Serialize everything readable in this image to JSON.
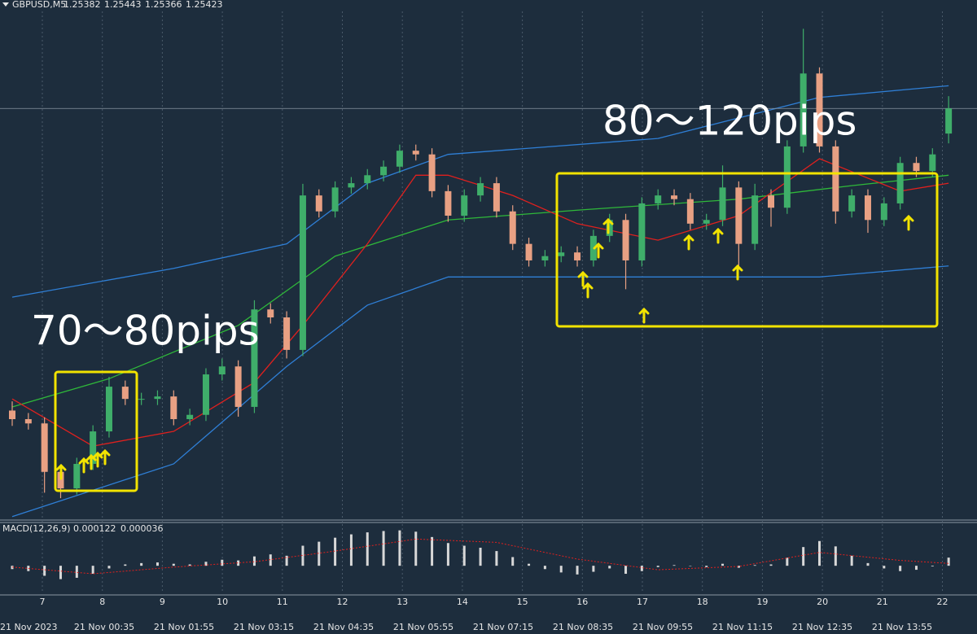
{
  "header": {
    "symbol": "GBPUSD,M5"
  },
  "chart_data": {
    "type": "candlestick",
    "open": [
      1.2493,
      1.24916,
      1.24909,
      1.2483,
      1.24803,
      1.24843,
      1.24896,
      1.24969,
      1.24949,
      1.24949,
      1.24953,
      1.24916,
      1.24923,
      1.24989,
      1.25002,
      1.24936,
      1.25095,
      1.25082,
      1.25029,
      1.25281,
      1.25255,
      1.25294,
      1.25301,
      1.25314,
      1.25328,
      1.25354,
      1.25348,
      1.25288,
      1.25248,
      1.25281,
      1.25301,
      1.25255,
      1.25202,
      1.25175,
      1.25182,
      1.25188,
      1.25175,
      1.25215,
      1.25241,
      1.25175,
      1.25268,
      1.25281,
      1.25275,
      1.25235,
      1.25241,
      1.25294,
      1.25202,
      1.25281,
      1.25261,
      1.25361,
      1.2548,
      1.25361,
      1.25255,
      1.25281,
      1.25241,
      1.25268,
      1.25334,
      1.25321,
      1.25382
    ],
    "high": [
      1.24945,
      1.24926,
      1.24919,
      1.2484,
      1.24853,
      1.24906,
      1.24985,
      1.24979,
      1.24959,
      1.24963,
      1.24963,
      1.24933,
      1.24999,
      1.25015,
      1.25012,
      1.2511,
      1.25105,
      1.25092,
      1.253,
      1.25291,
      1.25304,
      1.25311,
      1.25324,
      1.25338,
      1.25364,
      1.25364,
      1.25358,
      1.25298,
      1.25291,
      1.25311,
      1.25311,
      1.25265,
      1.25212,
      1.25192,
      1.25198,
      1.25198,
      1.25225,
      1.25251,
      1.25251,
      1.25278,
      1.25291,
      1.25291,
      1.25285,
      1.25251,
      1.2533,
      1.25304,
      1.253,
      1.25291,
      1.25371,
      1.25553,
      1.2549,
      1.25371,
      1.25291,
      1.25291,
      1.25278,
      1.25344,
      1.25344,
      1.25358,
      1.25443
    ],
    "low": [
      1.24905,
      1.24899,
      1.24796,
      1.24787,
      1.24793,
      1.24833,
      1.24886,
      1.24939,
      1.24939,
      1.24939,
      1.24906,
      1.24906,
      1.24913,
      1.24979,
      1.2492,
      1.24926,
      1.25072,
      1.25015,
      1.25019,
      1.25245,
      1.25245,
      1.25284,
      1.25291,
      1.25304,
      1.25318,
      1.25338,
      1.25278,
      1.25238,
      1.25238,
      1.25271,
      1.25245,
      1.25192,
      1.25165,
      1.25165,
      1.25172,
      1.25165,
      1.25165,
      1.25205,
      1.25128,
      1.25165,
      1.25258,
      1.25265,
      1.25225,
      1.25225,
      1.25231,
      1.2516,
      1.25192,
      1.2523,
      1.25251,
      1.25351,
      1.25351,
      1.25235,
      1.25245,
      1.2522,
      1.25231,
      1.25258,
      1.25311,
      1.25311,
      1.25366
    ],
    "close": [
      1.24916,
      1.24909,
      1.2483,
      1.24803,
      1.24843,
      1.24896,
      1.24969,
      1.24949,
      1.24949,
      1.24953,
      1.24916,
      1.24923,
      1.24989,
      1.25002,
      1.24936,
      1.25095,
      1.25082,
      1.25029,
      1.25281,
      1.25255,
      1.25294,
      1.25301,
      1.25314,
      1.25328,
      1.25354,
      1.25348,
      1.25288,
      1.25248,
      1.25281,
      1.25301,
      1.25255,
      1.25202,
      1.25175,
      1.25182,
      1.25188,
      1.25175,
      1.25215,
      1.25241,
      1.25175,
      1.25268,
      1.25281,
      1.25275,
      1.25235,
      1.25241,
      1.25294,
      1.25202,
      1.25281,
      1.25261,
      1.25361,
      1.2548,
      1.25361,
      1.25255,
      1.25281,
      1.25241,
      1.25268,
      1.25334,
      1.25321,
      1.25348,
      1.25423
    ],
    "colors": {
      "up": "#3fae6a",
      "down": "#e8a083"
    },
    "ylim": [
      1.2475,
      1.2558
    ],
    "indicators": [
      {
        "color": "#2f7fd6",
        "x": [
          0,
          10,
          17,
          22,
          27,
          40,
          50,
          58
        ],
        "values": [
          1.25115,
          1.25162,
          1.25202,
          1.25301,
          1.25348,
          1.25374,
          1.25441,
          1.2546
        ]
      },
      {
        "color": "#2f7fd6",
        "x": [
          0,
          10,
          17,
          22,
          27,
          40,
          50,
          58
        ],
        "values": [
          1.24757,
          1.24843,
          1.25002,
          1.25102,
          1.25148,
          1.25148,
          1.25148,
          1.25166
        ]
      },
      {
        "color": "#2fb83a",
        "x": [
          0,
          6,
          14,
          20,
          27,
          35,
          45,
          52,
          58
        ],
        "values": [
          1.24936,
          1.24982,
          1.25069,
          1.25182,
          1.25241,
          1.25257,
          1.25275,
          1.25297,
          1.25314
        ]
      },
      {
        "color": "#e0201e",
        "x": [
          0,
          5,
          10,
          15,
          18,
          22,
          25,
          27,
          31,
          35,
          40,
          45,
          50,
          55,
          58
        ],
        "values": [
          1.24949,
          1.24872,
          1.24896,
          1.24976,
          1.25069,
          1.25202,
          1.25314,
          1.25314,
          1.25281,
          1.25235,
          1.25208,
          1.25248,
          1.25341,
          1.25288,
          1.25301
        ]
      }
    ],
    "annotations": [
      "70～80pips",
      "80～120pips"
    ],
    "day_labels": [
      "7",
      "8",
      "9",
      "10",
      "11",
      "12",
      "13",
      "14",
      "15",
      "16",
      "17",
      "18",
      "19",
      "20",
      "21",
      "22"
    ],
    "time_labels": [
      "21 Nov 2023",
      "21 Nov 00:35",
      "21 Nov 01:55",
      "21 Nov 03:15",
      "21 Nov 04:35",
      "21 Nov 05:55",
      "21 Nov 07:15",
      "21 Nov 08:35",
      "21 Nov 09:55",
      "21 Nov 11:15",
      "21 Nov 12:35",
      "21 Nov 13:55"
    ]
  },
  "macd": {
    "type": "bar",
    "label": "MACD(12,26,9)",
    "color": "#d8d8d8",
    "values": [
      -5e-05,
      -8e-05,
      -0.00015,
      -0.0002,
      -0.00018,
      -0.00012,
      -4e-05,
      2e-05,
      4e-05,
      5e-05,
      3e-05,
      2e-05,
      6e-05,
      9e-05,
      8e-05,
      0.00014,
      0.00017,
      0.00015,
      0.0003,
      0.00036,
      0.00042,
      0.00047,
      0.0005,
      0.00052,
      0.00053,
      0.00051,
      0.00043,
      0.00034,
      0.0003,
      0.00027,
      0.00022,
      0.00013,
      3e-05,
      -5e-05,
      -0.0001,
      -0.00013,
      -9e-05,
      -4e-05,
      -0.00012,
      -8e-05,
      -2e-05,
      1e-05,
      0,
      -2e-05,
      3e-05,
      -3e-05,
      1e-05,
      2e-05,
      0.00012,
      0.00028,
      0.00037,
      0.00029,
      0.00015,
      4e-05,
      -4e-05,
      -8e-05,
      -6e-05,
      -1e-05,
      0.000122
    ],
    "signal": {
      "color": "#e0201e",
      "x": [
        0,
        5,
        10,
        15,
        20,
        25,
        30,
        35,
        40,
        45,
        50,
        55,
        58
      ],
      "values": [
        -2e-05,
        -0.00012,
        -2e-05,
        6e-05,
        0.00022,
        0.0004,
        0.00035,
        0.0001,
        -6e-05,
        -1e-05,
        0.0002,
        8e-05,
        3.6e-05
      ]
    },
    "ylim": [
      -0.0004,
      0.00055
    ]
  }
}
